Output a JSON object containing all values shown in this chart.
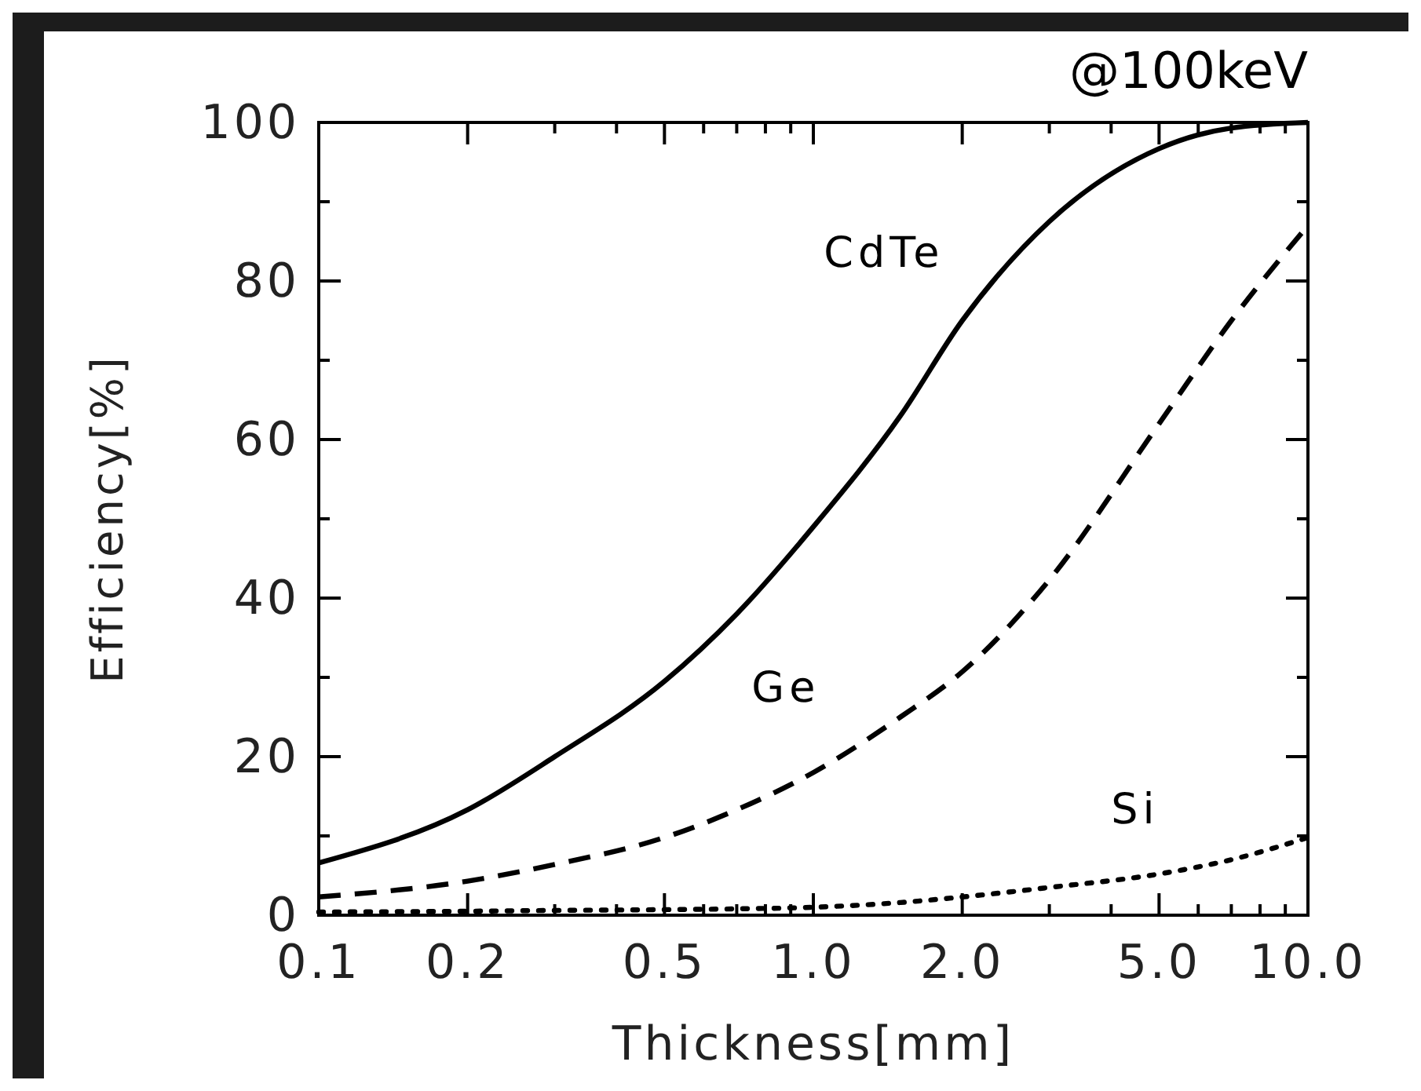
{
  "chart_data": {
    "type": "line",
    "xlabel": "Thickness[mm]",
    "ylabel": "Efficiency[%]",
    "annotations": [
      "@100keV"
    ],
    "log": "x",
    "xlim": [
      0.1,
      10
    ],
    "ylim": [
      0,
      100
    ],
    "xticks": [
      0.1,
      0.2,
      {
        "value": 0.3,
        "label": null
      },
      {
        "value": 0.4,
        "label": null
      },
      0.5,
      {
        "value": 0.6,
        "label": null
      },
      {
        "value": 0.7,
        "label": null
      },
      {
        "value": 0.8,
        "label": null
      },
      {
        "value": 0.9,
        "label": null
      },
      {
        "value": 1,
        "label": "1.0"
      },
      {
        "value": 2,
        "label": "2.0"
      },
      {
        "value": 3,
        "label": null
      },
      {
        "value": 4,
        "label": null
      },
      {
        "value": 5,
        "label": "5.0"
      },
      {
        "value": 6,
        "label": null
      },
      {
        "value": 7,
        "label": null
      },
      {
        "value": 8,
        "label": null
      },
      {
        "value": 9,
        "label": null
      },
      {
        "value": 10,
        "label": "10.0"
      }
    ],
    "yticks": [
      0,
      {
        "value": 10,
        "label": null
      },
      20,
      {
        "value": 30,
        "label": null
      },
      40,
      {
        "value": 50,
        "label": null
      },
      60,
      {
        "value": 70,
        "label": null
      },
      80,
      {
        "value": 90,
        "label": null
      },
      100
    ],
    "grid": false,
    "marker": "none",
    "x": [
      0.1,
      0.2,
      0.3,
      0.5,
      0.7,
      1.0,
      1.5,
      2.0,
      3.0,
      5.0,
      7.0,
      10.0
    ],
    "series": [
      {
        "name": "CdTe",
        "color": "#000000",
        "line_style": "solid",
        "values": [
          6.6,
          13.3,
          20,
          29.5,
          38,
          49,
          63,
          75,
          87.5,
          96.7,
          99.3,
          100
        ]
      },
      {
        "name": "Ge",
        "color": "#000000",
        "line_style": "dashed",
        "values": [
          2.3,
          4.3,
          6.4,
          9.8,
          13.3,
          18,
          25,
          30.7,
          42.3,
          62,
          75,
          87
        ]
      },
      {
        "name": "Si",
        "color": "#000000",
        "line_style": "dotted",
        "values": [
          0.4,
          0.5,
          0.6,
          0.7,
          0.8,
          1,
          1.6,
          2.3,
          3.5,
          5.2,
          7,
          9.8
        ]
      }
    ]
  }
}
